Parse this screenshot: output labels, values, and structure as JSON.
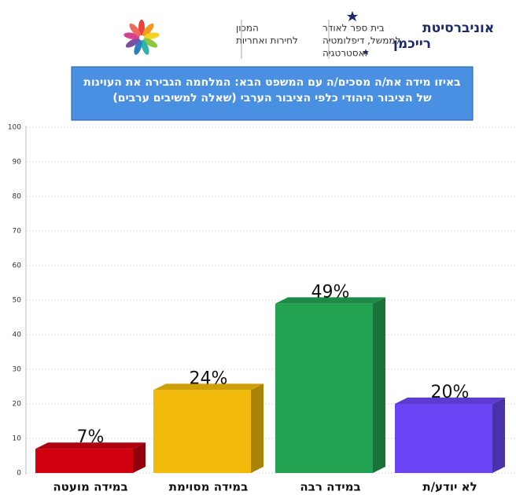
{
  "header": {
    "university": [
      "אוניברסיטת",
      "רייכמן"
    ],
    "school": [
      "בית ספר לאודר",
      "לממשל, דיפלומטיה",
      "ואסטרטגיה"
    ],
    "institute": [
      "המכון",
      "לחירות ואחריות"
    ]
  },
  "chart_data": {
    "type": "bar3d",
    "title": [
      "באיזו מידה את/ה מסכים/ה עם המשפט הבא: המלחמה הגבירה את העוינות",
      "של הציבור היהודי כלפי הציבור הערבי (שאלה למשיבים ערבים)"
    ],
    "categories": [
      "במידה מועטה",
      "במידה מסוימת",
      "במידה רבה",
      "לא יודע/ת"
    ],
    "values": [
      7,
      24,
      49,
      20
    ],
    "value_labels": [
      "7%",
      "24%",
      "49%",
      "20%"
    ],
    "colors": [
      "#d0000f",
      "#f2bb0c",
      "#22a352",
      "#6b45f5"
    ],
    "ylim": [
      0,
      100
    ],
    "yticks": [
      0,
      10,
      20,
      30,
      40,
      50,
      60,
      70,
      80,
      90,
      100
    ],
    "grid": true
  }
}
